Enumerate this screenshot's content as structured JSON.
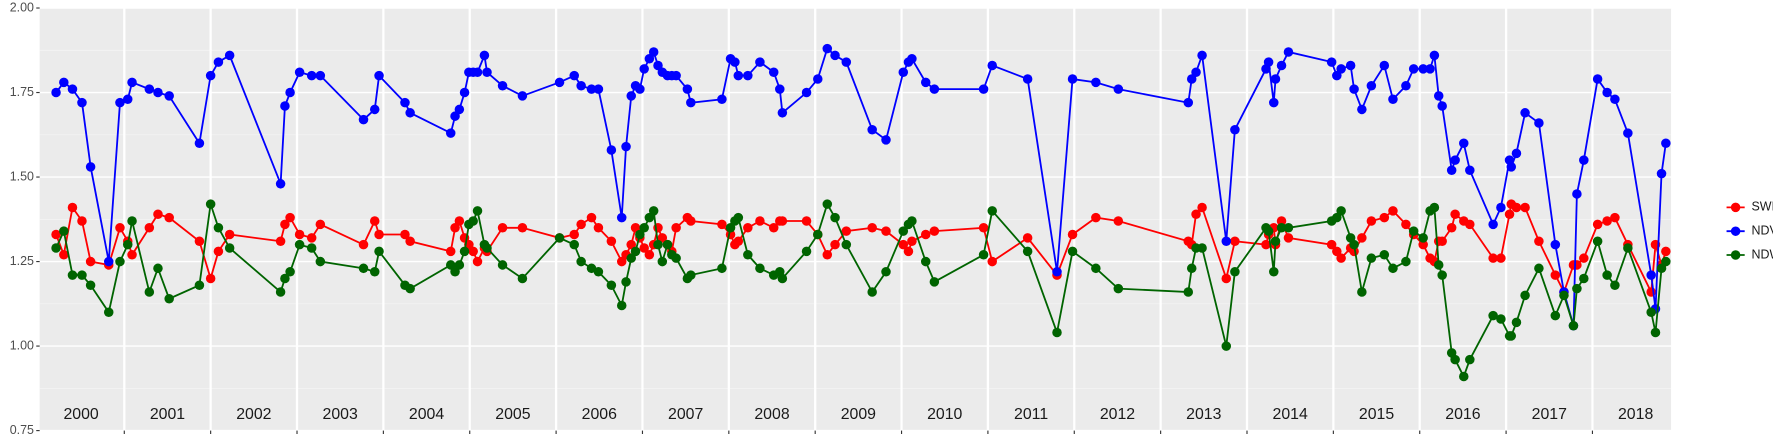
{
  "chart_data": {
    "type": "line",
    "x": [
      2000.21,
      2000.3,
      2000.4,
      2000.51,
      2000.61,
      2000.82,
      2000.95,
      2001.04,
      2001.09,
      2001.29,
      2001.39,
      2001.52,
      2001.87,
      2002.0,
      2002.09,
      2002.22,
      2002.81,
      2002.86,
      2002.92,
      2003.03,
      2003.17,
      2003.27,
      2003.77,
      2003.9,
      2003.95,
      2004.25,
      2004.31,
      2004.78,
      2004.83,
      2004.88,
      2004.94,
      2004.99,
      2005.04,
      2005.09,
      2005.17,
      2005.2,
      2005.38,
      2005.61,
      2006.04,
      2006.21,
      2006.29,
      2006.41,
      2006.49,
      2006.64,
      2006.76,
      2006.81,
      2006.87,
      2006.92,
      2006.97,
      2007.02,
      2007.08,
      2007.13,
      2007.18,
      2007.23,
      2007.29,
      2007.34,
      2007.39,
      2007.52,
      2007.56,
      2007.92,
      2008.02,
      2008.07,
      2008.11,
      2008.22,
      2008.36,
      2008.52,
      2008.59,
      2008.62,
      2008.9,
      2009.03,
      2009.14,
      2009.23,
      2009.36,
      2009.66,
      2009.82,
      2010.02,
      2010.08,
      2010.12,
      2010.28,
      2010.38,
      2010.95,
      2011.05,
      2011.46,
      2011.8,
      2011.98,
      2012.25,
      2012.51,
      2013.32,
      2013.36,
      2013.41,
      2013.48,
      2013.76,
      2013.86,
      2014.22,
      2014.25,
      2014.31,
      2014.33,
      2014.4,
      2014.48,
      2014.98,
      2015.04,
      2015.09,
      2015.2,
      2015.24,
      2015.33,
      2015.44,
      2015.59,
      2015.69,
      2015.84,
      2015.93,
      2016.04,
      2016.12,
      2016.17,
      2016.22,
      2016.26,
      2016.37,
      2016.41,
      2016.51,
      2016.58,
      2016.85,
      2016.94,
      2017.04,
      2017.06,
      2017.12,
      2017.22,
      2017.38,
      2017.57,
      2017.67,
      2017.78,
      2017.82,
      2017.9,
      2018.06,
      2018.17,
      2018.26,
      2018.41,
      2018.68,
      2018.73,
      2018.8,
      2018.85
    ],
    "series": [
      {
        "name": "SWIR",
        "color": "#ff0000",
        "values": [
          1.33,
          1.27,
          1.41,
          1.37,
          1.25,
          1.24,
          1.35,
          1.31,
          1.27,
          1.35,
          1.39,
          1.38,
          1.31,
          1.2,
          1.28,
          1.33,
          1.31,
          1.36,
          1.38,
          1.33,
          1.32,
          1.36,
          1.3,
          1.37,
          1.33,
          1.33,
          1.31,
          1.28,
          1.35,
          1.37,
          1.32,
          1.3,
          1.28,
          1.25,
          1.29,
          1.28,
          1.35,
          1.35,
          1.32,
          1.33,
          1.36,
          1.38,
          1.35,
          1.31,
          1.25,
          1.27,
          1.3,
          1.35,
          1.32,
          1.29,
          1.27,
          1.3,
          1.35,
          1.32,
          1.3,
          1.28,
          1.35,
          1.38,
          1.37,
          1.36,
          1.33,
          1.3,
          1.31,
          1.35,
          1.37,
          1.35,
          1.37,
          1.37,
          1.37,
          1.33,
          1.27,
          1.3,
          1.34,
          1.35,
          1.34,
          1.3,
          1.28,
          1.31,
          1.33,
          1.34,
          1.35,
          1.25,
          1.32,
          1.21,
          1.33,
          1.38,
          1.37,
          1.31,
          1.3,
          1.39,
          1.41,
          1.2,
          1.31,
          1.3,
          1.33,
          1.35,
          1.3,
          1.37,
          1.32,
          1.3,
          1.28,
          1.26,
          1.29,
          1.28,
          1.32,
          1.37,
          1.38,
          1.4,
          1.36,
          1.33,
          1.3,
          1.26,
          1.25,
          1.31,
          1.31,
          1.35,
          1.39,
          1.37,
          1.36,
          1.26,
          1.26,
          1.39,
          1.42,
          1.41,
          1.41,
          1.31,
          1.21,
          1.16,
          1.24,
          1.24,
          1.26,
          1.36,
          1.37,
          1.38,
          1.3,
          1.16,
          1.3,
          1.24,
          1.28
        ]
      },
      {
        "name": "NDVI",
        "color": "#0000ff",
        "values": [
          1.75,
          1.78,
          1.76,
          1.72,
          1.53,
          1.25,
          1.72,
          1.73,
          1.78,
          1.76,
          1.75,
          1.74,
          1.6,
          1.8,
          1.84,
          1.86,
          1.48,
          1.71,
          1.75,
          1.81,
          1.8,
          1.8,
          1.67,
          1.7,
          1.8,
          1.72,
          1.69,
          1.63,
          1.68,
          1.7,
          1.75,
          1.81,
          1.81,
          1.81,
          1.86,
          1.81,
          1.77,
          1.74,
          1.78,
          1.8,
          1.77,
          1.76,
          1.76,
          1.58,
          1.38,
          1.59,
          1.74,
          1.77,
          1.76,
          1.82,
          1.85,
          1.87,
          1.83,
          1.81,
          1.8,
          1.8,
          1.8,
          1.76,
          1.72,
          1.73,
          1.85,
          1.84,
          1.8,
          1.8,
          1.84,
          1.81,
          1.76,
          1.69,
          1.75,
          1.79,
          1.88,
          1.86,
          1.84,
          1.64,
          1.61,
          1.81,
          1.84,
          1.85,
          1.78,
          1.76,
          1.76,
          1.83,
          1.79,
          1.22,
          1.79,
          1.78,
          1.76,
          1.72,
          1.79,
          1.81,
          1.86,
          1.31,
          1.64,
          1.82,
          1.84,
          1.72,
          1.79,
          1.83,
          1.87,
          1.84,
          1.8,
          1.82,
          1.83,
          1.76,
          1.7,
          1.77,
          1.83,
          1.73,
          1.77,
          1.82,
          1.82,
          1.82,
          1.86,
          1.74,
          1.71,
          1.52,
          1.55,
          1.6,
          1.52,
          1.36,
          1.41,
          1.55,
          1.53,
          1.57,
          1.69,
          1.66,
          1.3,
          1.16,
          1.06,
          1.45,
          1.55,
          1.79,
          1.75,
          1.73,
          1.63,
          1.21,
          1.11,
          1.51,
          1.6
        ]
      },
      {
        "name": "NDWI",
        "color": "#006400",
        "values": [
          1.29,
          1.34,
          1.21,
          1.21,
          1.18,
          1.1,
          1.25,
          1.3,
          1.37,
          1.16,
          1.23,
          1.14,
          1.18,
          1.42,
          1.35,
          1.29,
          1.16,
          1.2,
          1.22,
          1.3,
          1.29,
          1.25,
          1.23,
          1.22,
          1.28,
          1.18,
          1.17,
          1.24,
          1.22,
          1.24,
          1.28,
          1.36,
          1.37,
          1.4,
          1.3,
          1.29,
          1.24,
          1.2,
          1.32,
          1.3,
          1.25,
          1.23,
          1.22,
          1.18,
          1.12,
          1.19,
          1.26,
          1.28,
          1.33,
          1.35,
          1.38,
          1.4,
          1.3,
          1.25,
          1.3,
          1.27,
          1.26,
          1.2,
          1.21,
          1.23,
          1.35,
          1.37,
          1.38,
          1.27,
          1.23,
          1.21,
          1.22,
          1.2,
          1.28,
          1.33,
          1.42,
          1.38,
          1.3,
          1.16,
          1.22,
          1.34,
          1.36,
          1.37,
          1.25,
          1.19,
          1.27,
          1.4,
          1.28,
          1.04,
          1.28,
          1.23,
          1.17,
          1.16,
          1.23,
          1.29,
          1.29,
          1.0,
          1.22,
          1.35,
          1.34,
          1.22,
          1.31,
          1.35,
          1.35,
          1.37,
          1.38,
          1.4,
          1.32,
          1.3,
          1.16,
          1.26,
          1.27,
          1.23,
          1.25,
          1.34,
          1.32,
          1.4,
          1.41,
          1.24,
          1.21,
          0.98,
          0.96,
          0.91,
          0.96,
          1.09,
          1.08,
          1.03,
          1.03,
          1.07,
          1.15,
          1.23,
          1.09,
          1.15,
          1.06,
          1.17,
          1.2,
          1.31,
          1.21,
          1.18,
          1.29,
          1.1,
          1.04,
          1.23,
          1.25
        ]
      }
    ],
    "xlim": [
      2000.02,
      2018.91
    ],
    "ylim": [
      0.75,
      2.0
    ],
    "yticks": [
      0.75,
      {
        "value": 1.0,
        "label": "1.00"
      },
      1.25,
      {
        "value": 1.5,
        "label": "1.50"
      },
      1.75,
      {
        "value": 2.0,
        "label": "2.00"
      }
    ],
    "xticks": [
      {
        "value": 2000.5,
        "label": "2000"
      },
      {
        "value": 2001.5,
        "label": "2001"
      },
      {
        "value": 2002.5,
        "label": "2002"
      },
      {
        "value": 2003.5,
        "label": "2003"
      },
      {
        "value": 2004.5,
        "label": "2004"
      },
      {
        "value": 2005.5,
        "label": "2005"
      },
      {
        "value": 2006.5,
        "label": "2006"
      },
      {
        "value": 2007.5,
        "label": "2007"
      },
      {
        "value": 2008.5,
        "label": "2008"
      },
      {
        "value": 2009.5,
        "label": "2009"
      },
      {
        "value": 2010.5,
        "label": "2010"
      },
      {
        "value": 2011.5,
        "label": "2011"
      },
      {
        "value": 2012.5,
        "label": "2012"
      },
      {
        "value": 2013.5,
        "label": "2013"
      },
      {
        "value": 2014.5,
        "label": "2014"
      },
      {
        "value": 2015.5,
        "label": "2015"
      },
      {
        "value": 2016.5,
        "label": "2016"
      },
      {
        "value": 2017.5,
        "label": "2017"
      },
      {
        "value": 2018.5,
        "label": "2018"
      }
    ],
    "year_lines": [
      2001,
      2002,
      2003,
      2004,
      2005,
      2006,
      2007,
      2008,
      2009,
      2010,
      2011,
      2012,
      2013,
      2014,
      2015,
      2016,
      2017,
      2018
    ],
    "grid": true,
    "legend": "right"
  }
}
